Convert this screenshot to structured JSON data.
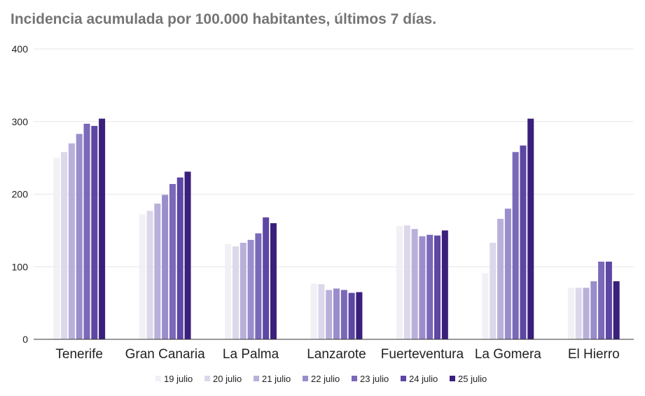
{
  "chart_data": {
    "type": "bar",
    "title": "Incidencia acumulada por 100.000 habitantes, últimos 7 días.",
    "xlabel": "",
    "ylabel": "",
    "ylim": [
      0,
      400
    ],
    "yticks": [
      0,
      100,
      200,
      300,
      400
    ],
    "grid": true,
    "legend_position": "bottom",
    "categories": [
      "Tenerife",
      "Gran Canaria",
      "La Palma",
      "Lanzarote",
      "Fuerteventura",
      "La Gomera",
      "El Hierro"
    ],
    "series": [
      {
        "name": "19 julio",
        "color": "#f1f0f5",
        "values": [
          250,
          172,
          131,
          77,
          156,
          91,
          71
        ]
      },
      {
        "name": "20 julio",
        "color": "#dcd7ea",
        "values": [
          258,
          177,
          128,
          76,
          157,
          133,
          71
        ]
      },
      {
        "name": "21 julio",
        "color": "#b9b0da",
        "values": [
          270,
          187,
          133,
          68,
          152,
          166,
          71
        ]
      },
      {
        "name": "22 julio",
        "color": "#9a8dcc",
        "values": [
          283,
          199,
          137,
          70,
          142,
          180,
          80
        ]
      },
      {
        "name": "23 julio",
        "color": "#7a68b8",
        "values": [
          297,
          214,
          146,
          68,
          144,
          258,
          107
        ]
      },
      {
        "name": "24 julio",
        "color": "#5d46a4",
        "values": [
          294,
          223,
          168,
          64,
          143,
          267,
          107
        ]
      },
      {
        "name": "25 julio",
        "color": "#3a1f7c",
        "values": [
          304,
          231,
          160,
          65,
          150,
          304,
          80
        ]
      }
    ]
  }
}
